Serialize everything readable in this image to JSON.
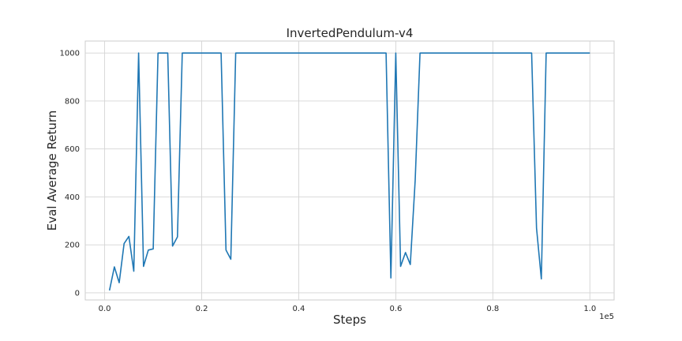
{
  "chart_data": {
    "type": "line",
    "title": "InvertedPendulum-v4",
    "xlabel": "Steps",
    "ylabel": "Eval Average Return",
    "x_offset_label": "1e5",
    "xlim": [
      -0.04,
      1.05
    ],
    "ylim": [
      -30,
      1050
    ],
    "xticks": [
      0.0,
      0.2,
      0.4,
      0.6,
      0.8,
      1.0
    ],
    "xtick_labels": [
      "0.0",
      "0.2",
      "0.4",
      "0.6",
      "0.8",
      "1.0"
    ],
    "yticks": [
      0,
      200,
      400,
      600,
      800,
      1000
    ],
    "ytick_labels": [
      "0",
      "200",
      "400",
      "600",
      "800",
      "1000"
    ],
    "grid": true,
    "series": [
      {
        "color": "#1f77b4",
        "x": [
          0.01,
          0.02,
          0.03,
          0.04,
          0.05,
          0.06,
          0.07,
          0.08,
          0.09,
          0.1,
          0.11,
          0.12,
          0.13,
          0.14,
          0.15,
          0.16,
          0.17,
          0.18,
          0.19,
          0.2,
          0.21,
          0.22,
          0.23,
          0.24,
          0.25,
          0.26,
          0.27,
          0.28,
          0.29,
          0.3,
          0.31,
          0.32,
          0.33,
          0.34,
          0.35,
          0.36,
          0.37,
          0.38,
          0.39,
          0.4,
          0.41,
          0.42,
          0.43,
          0.44,
          0.45,
          0.46,
          0.47,
          0.48,
          0.49,
          0.5,
          0.51,
          0.52,
          0.53,
          0.54,
          0.55,
          0.56,
          0.57,
          0.58,
          0.59,
          0.6,
          0.61,
          0.62,
          0.63,
          0.64,
          0.65,
          0.66,
          0.67,
          0.68,
          0.69,
          0.7,
          0.71,
          0.72,
          0.73,
          0.74,
          0.75,
          0.76,
          0.77,
          0.78,
          0.79,
          0.8,
          0.81,
          0.82,
          0.83,
          0.84,
          0.85,
          0.86,
          0.87,
          0.88,
          0.89,
          0.9,
          0.91,
          0.92,
          0.93,
          0.94,
          0.95,
          0.96,
          0.97,
          0.98,
          0.99,
          1.0
        ],
        "y": [
          10,
          108,
          42,
          205,
          235,
          90,
          1000,
          110,
          178,
          183,
          1000,
          1000,
          1000,
          195,
          233,
          1000,
          1000,
          1000,
          1000,
          1000,
          1000,
          1000,
          1000,
          1000,
          178,
          140,
          1000,
          1000,
          1000,
          1000,
          1000,
          1000,
          1000,
          1000,
          1000,
          1000,
          1000,
          1000,
          1000,
          1000,
          1000,
          1000,
          1000,
          1000,
          1000,
          1000,
          1000,
          1000,
          1000,
          1000,
          1000,
          1000,
          1000,
          1000,
          1000,
          1000,
          1000,
          1000,
          62,
          1000,
          110,
          168,
          118,
          470,
          1000,
          1000,
          1000,
          1000,
          1000,
          1000,
          1000,
          1000,
          1000,
          1000,
          1000,
          1000,
          1000,
          1000,
          1000,
          1000,
          1000,
          1000,
          1000,
          1000,
          1000,
          1000,
          1000,
          1000,
          270,
          58,
          1000,
          1000,
          1000,
          1000,
          1000,
          1000,
          1000,
          1000,
          1000,
          1000
        ]
      }
    ]
  }
}
